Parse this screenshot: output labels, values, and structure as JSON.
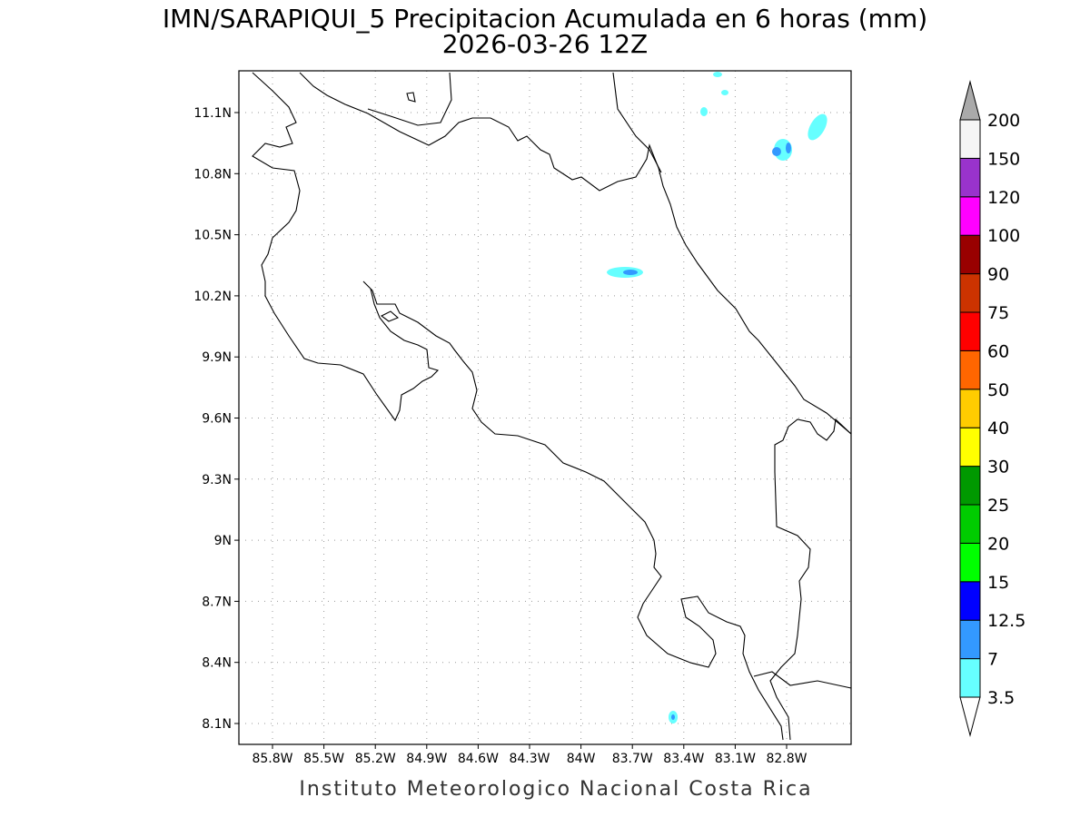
{
  "title": "IMN/SARAPIQUI_5 Precipitacion Acumulada en 6 horas (mm)",
  "subtitle": "2026-03-26 12Z",
  "footer": "Instituto Meteorologico Nacional Costa Rica",
  "map": {
    "lon_labels": [
      "85.8W",
      "85.5W",
      "85.2W",
      "84.9W",
      "84.6W",
      "84.3W",
      "84W",
      "83.7W",
      "83.4W",
      "83.1W",
      "82.8W"
    ],
    "lat_labels": [
      "11.1N",
      "10.8N",
      "10.5N",
      "10.2N",
      "9.9N",
      "9.6N",
      "9.3N",
      "9N",
      "8.7N",
      "8.4N",
      "8.1N"
    ],
    "grid": true
  },
  "colorbar": {
    "levels": [
      3.5,
      7,
      12.5,
      15,
      20,
      25,
      30,
      40,
      50,
      60,
      75,
      90,
      100,
      120,
      150,
      200
    ],
    "colors": [
      "#ffffff",
      "#66ffff",
      "#3399ff",
      "#0000ff",
      "#00ff00",
      "#00cc00",
      "#009900",
      "#ffff00",
      "#ffcc00",
      "#ff6600",
      "#ff0000",
      "#cc3300",
      "#990000",
      "#ff00ff",
      "#9933cc",
      "#f5f5f5",
      "#aaaaaa"
    ]
  }
}
